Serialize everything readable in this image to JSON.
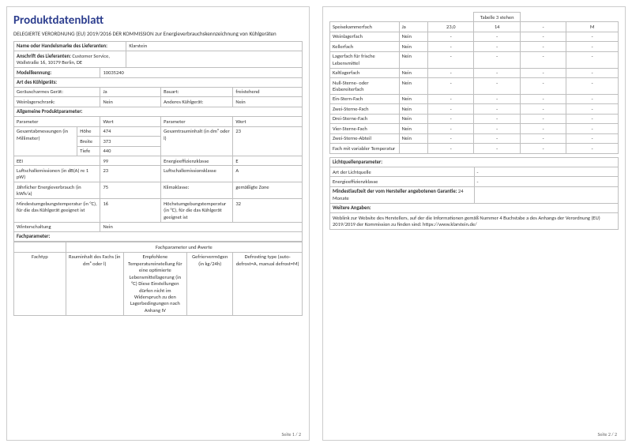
{
  "title": "Produktdatenblatt",
  "subtitle": "DELEGIERTE VERORDNUNG (EU) 2019/2016 DER KOMMISSION zur Energieverbrauchskennzeichnung von Kühlgeräten",
  "supplier_name_label": "Name oder Handelsmarke des Lieferanten:",
  "supplier_name": "Klarstein",
  "supplier_addr_label": "Anschrift des Lieferanten:",
  "supplier_addr": "Customer Service, Wallstraße 16, 10179 Berlin, DE",
  "model_label": "Modellkennung:",
  "model": "10035240",
  "device_type_label": "Art des Kühlgeräts:",
  "quiet_label": "Geräuscharmes Gerät:",
  "quiet": "Ja",
  "build_label": "Bauart:",
  "build": "freistehend",
  "wine_label": "Weinlagerschrank:",
  "wine": "Nein",
  "other_label": "Anderes Kühlgerät:",
  "other": "Nein",
  "general_params_label": "Allgemeine Produktparameter:",
  "param": "Parameter",
  "value": "Wert",
  "dims_label": "Gesamtabmessungen (in Millimeter)",
  "h_label": "Höhe",
  "h": "474",
  "w_label": "Breite",
  "w": "373",
  "d_label": "Tiefe",
  "d": "440",
  "vol_label": "Gesamtrauminhalt (in dm³ oder l)",
  "vol": "23",
  "eei_label": "EEI",
  "eei": "99",
  "eclass_label": "Energieeffizienzklasse",
  "eclass": "E",
  "noise_label": "Luftschallemissionen (in dB(A) re 1 pW)",
  "noise": "23",
  "noise_class_label": "Luftschallemissionsklasse",
  "noise_class": "A",
  "annual_label": "Jährlicher Energieverbrauch (in kWh/a)",
  "annual": "75",
  "climate_label": "Klimaklasse:",
  "climate": "gemäßigte Zone",
  "min_temp_label": "Mindestumgebungstemperatur (in °C), für die das Kühlgerät geeignet ist",
  "min_temp": "16",
  "max_temp_label": "Höchstumgebungstemperatur (in °C), für die das Kühlgerät geeignet ist",
  "max_temp": "32",
  "winter_label": "Winterschaltung",
  "winter": "Nein",
  "compartment_params_label": "Fachparameter:",
  "comp_params_values": "Fachparameter und #werte",
  "comp_type": "Fachtyp",
  "comp_vol": "Rauminhalt des Fachs (in dm³ oder l)",
  "comp_temp": "Empfohlene Temperatureinstellung für eine optimierte Lebensmittellagerung (in °C) Diese Einstellungen dürfen nicht im Widerspruch zu den Lagerbedingungen nach Anhang IV",
  "comp_freeze": "Gefriervermögen (in kg/24h)",
  "comp_defrost": "Defrosting type (auto-defrost=A, manual defrost=M)",
  "tab3": "Tabelle 3 stehen",
  "rows": [
    {
      "n": "Speisekammerfach",
      "ja": "Ja",
      "v1": "23,0",
      "v2": "14",
      "v3": "-",
      "v4": "M"
    },
    {
      "n": "Weinlagerfach",
      "ja": "Nein",
      "v1": "-",
      "v2": "-",
      "v3": "-",
      "v4": "-"
    },
    {
      "n": "Kellerfach",
      "ja": "Nein",
      "v1": "-",
      "v2": "-",
      "v3": "-",
      "v4": "-"
    },
    {
      "n": "Lagerfach für frische Lebensmittel",
      "ja": "Nein",
      "v1": "-",
      "v2": "-",
      "v3": "-",
      "v4": "-"
    },
    {
      "n": "Kaltlagerfach",
      "ja": "Nein",
      "v1": "-",
      "v2": "-",
      "v3": "-",
      "v4": "-"
    },
    {
      "n": "Null-Sterne- oder Eisbereiterfach",
      "ja": "Nein",
      "v1": "-",
      "v2": "-",
      "v3": "-",
      "v4": "-"
    },
    {
      "n": "Ein-Stern-Fach",
      "ja": "Nein",
      "v1": "-",
      "v2": "-",
      "v3": "-",
      "v4": "-"
    },
    {
      "n": "Zwei-Sterne-Fach",
      "ja": "Nein",
      "v1": "-",
      "v2": "-",
      "v3": "-",
      "v4": "-"
    },
    {
      "n": "Drei-Sterne-Fach",
      "ja": "Nein",
      "v1": "-",
      "v2": "-",
      "v3": "-",
      "v4": "-"
    },
    {
      "n": "Vier-Sterne-Fach",
      "ja": "Nein",
      "v1": "-",
      "v2": "-",
      "v3": "-",
      "v4": "-"
    },
    {
      "n": "Zwei-Sterne-Abteil",
      "ja": "Nein",
      "v1": "-",
      "v2": "-",
      "v3": "-",
      "v4": "-"
    },
    {
      "n": "Fach mit variabler Temperatur",
      "ja": "",
      "v1": "-",
      "v2": "-",
      "v3": "-",
      "v4": "-"
    }
  ],
  "light_params_label": "Lichtquellenparameter:",
  "light_type_label": "Art der Lichtquelle",
  "light_type": "-",
  "light_class_label": "Energieeffizienzklasse",
  "light_class": "-",
  "warranty_label": "Mindestlaufzeit der vom Hersteller angebotenen Garantie:",
  "warranty": "24 Monate",
  "more_label": "Weitere Angaben:",
  "weblink": "Weblink zur Website des Herstellers, auf der die Informationen gemäß Nummer 4 Buchstabe a des Anhangs der Verordnung (EU) 2019/2019 der Kommission zu finden sind:  https://www.klarstein.de/",
  "page1": "Seite 1 / 2",
  "page2": "Seite 2 / 2"
}
